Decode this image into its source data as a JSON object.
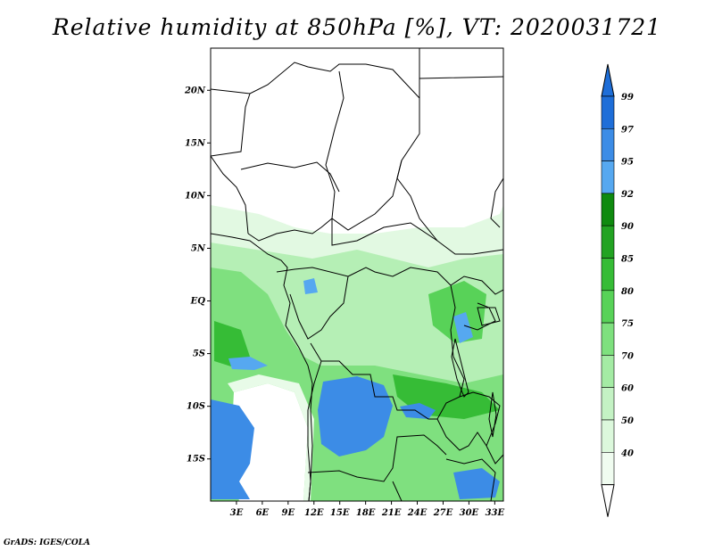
{
  "title": "Relative humidity at 850hPa [%], VT: 2020031721",
  "credit": "GrADS: IGES/COLA",
  "map": {
    "lat_range": [
      -19,
      24
    ],
    "lon_range": [
      0,
      34
    ],
    "lat_ticks": [
      {
        "value": 20,
        "label": "20N"
      },
      {
        "value": 15,
        "label": "15N"
      },
      {
        "value": 10,
        "label": "10N"
      },
      {
        "value": 5,
        "label": "5N"
      },
      {
        "value": 0,
        "label": "EQ"
      },
      {
        "value": -5,
        "label": "5S"
      },
      {
        "value": -10,
        "label": "10S"
      },
      {
        "value": -15,
        "label": "15S"
      }
    ],
    "lon_ticks": [
      {
        "value": 3,
        "label": "3E"
      },
      {
        "value": 6,
        "label": "6E"
      },
      {
        "value": 9,
        "label": "9E"
      },
      {
        "value": 12,
        "label": "12E"
      },
      {
        "value": 15,
        "label": "15E"
      },
      {
        "value": 18,
        "label": "18E"
      },
      {
        "value": 21,
        "label": "21E"
      },
      {
        "value": 24,
        "label": "24E"
      },
      {
        "value": 27,
        "label": "27E"
      },
      {
        "value": 30,
        "label": "30E"
      },
      {
        "value": 33,
        "label": "33E"
      }
    ]
  },
  "colorbar": {
    "levels": [
      {
        "value": "99",
        "color": "#1e6ed8"
      },
      {
        "value": "97",
        "color": "#3c8ce6"
      },
      {
        "value": "95",
        "color": "#56a8f0"
      },
      {
        "value": "92",
        "color": "#0f8a0f"
      },
      {
        "value": "90",
        "color": "#22a322"
      },
      {
        "value": "85",
        "color": "#36bc36"
      },
      {
        "value": "80",
        "color": "#58d258"
      },
      {
        "value": "75",
        "color": "#7ee07e"
      },
      {
        "value": "70",
        "color": "#a4eba4"
      },
      {
        "value": "60",
        "color": "#c4f2c4"
      },
      {
        "value": "50",
        "color": "#dcf8dc"
      },
      {
        "value": "40",
        "color": "#f0fcf0"
      }
    ],
    "top_arrow_color": "#1e6ed8",
    "bottom_arrow_color": "#ffffff"
  }
}
